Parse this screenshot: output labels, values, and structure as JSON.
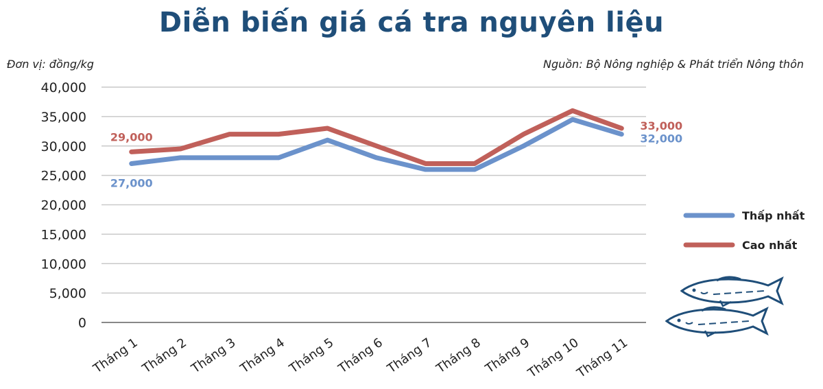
{
  "header": {
    "title": "Diễn biến giá cá tra nguyên liệu",
    "unit": "Đơn vị: đồng/kg",
    "source": "Nguồn: Bộ Nông nghiệp & Phát triển Nông thôn"
  },
  "chart_data": {
    "type": "line",
    "categories": [
      "Tháng 1",
      "Tháng 2",
      "Tháng 3",
      "Tháng 4",
      "Tháng 5",
      "Tháng 6",
      "Tháng 7",
      "Tháng 8",
      "Tháng 9",
      "Tháng 10",
      "Tháng 11"
    ],
    "series": [
      {
        "name": "Thấp nhất",
        "color": "#6b92cb",
        "values": [
          27000,
          28000,
          28000,
          28000,
          31000,
          28000,
          26000,
          26000,
          30000,
          34500,
          32000
        ]
      },
      {
        "name": "Cao nhất",
        "color": "#c0605a",
        "values": [
          29000,
          29500,
          32000,
          32000,
          33000,
          30000,
          27000,
          27000,
          32000,
          36000,
          33000
        ]
      }
    ],
    "y_ticks": [
      "0",
      "5,000",
      "10,000",
      "15,000",
      "20,000",
      "25,000",
      "30,000",
      "35,000",
      "40,000"
    ],
    "ylim": [
      0,
      40000
    ],
    "grid": true,
    "legend_position": "right",
    "data_labels": [
      {
        "series": "Cao nhất",
        "index": 0,
        "text": "29,000"
      },
      {
        "series": "Thấp nhất",
        "index": 0,
        "text": "27,000"
      },
      {
        "series": "Cao nhất",
        "index": 10,
        "text": "33,000"
      },
      {
        "series": "Thấp nhất",
        "index": 10,
        "text": "32,000"
      }
    ]
  },
  "decoration": {
    "icon": "fish-icon",
    "color": "#1f4e79"
  }
}
